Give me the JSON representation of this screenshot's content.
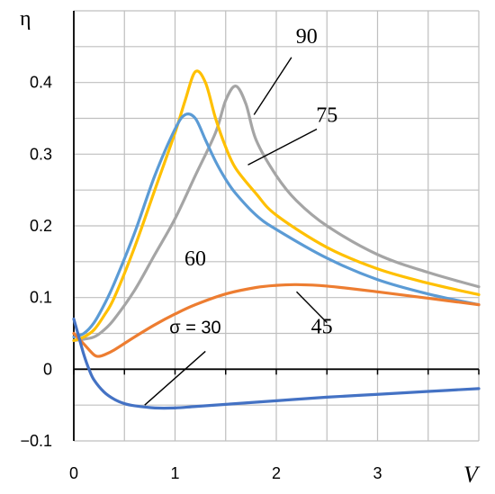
{
  "chart_data": {
    "type": "line",
    "xlabel": "V",
    "ylabel": "η",
    "xlim": [
      0,
      4
    ],
    "ylim": [
      -0.1,
      0.5
    ],
    "grid": true,
    "xticks": [
      "0",
      "1",
      "2",
      "3"
    ],
    "yticks": [
      "−0.1",
      "0",
      "0.1",
      "0.2",
      "0.3",
      "0.4"
    ],
    "series": [
      {
        "name": "90",
        "color": "#a5a5a5",
        "x": [
          0,
          0.1,
          0.2,
          0.3,
          0.4,
          0.6,
          0.8,
          1.0,
          1.2,
          1.4,
          1.5,
          1.6,
          1.7,
          1.8,
          2.0,
          2.2,
          2.5,
          3.0,
          3.5,
          4.0
        ],
        "y": [
          0.04,
          0.042,
          0.045,
          0.055,
          0.07,
          0.11,
          0.16,
          0.21,
          0.27,
          0.33,
          0.375,
          0.395,
          0.37,
          0.32,
          0.27,
          0.235,
          0.2,
          0.16,
          0.135,
          0.115
        ]
      },
      {
        "name": "75",
        "color": "#ffc000",
        "x": [
          0,
          0.1,
          0.2,
          0.3,
          0.4,
          0.6,
          0.8,
          1.0,
          1.1,
          1.2,
          1.3,
          1.4,
          1.5,
          1.6,
          1.8,
          2.0,
          2.5,
          3.0,
          3.5,
          4.0
        ],
        "y": [
          0.04,
          0.045,
          0.055,
          0.075,
          0.1,
          0.17,
          0.25,
          0.33,
          0.375,
          0.415,
          0.4,
          0.35,
          0.31,
          0.28,
          0.245,
          0.215,
          0.17,
          0.14,
          0.12,
          0.104
        ]
      },
      {
        "name": "60",
        "color": "#5b9bd5",
        "x": [
          0,
          0.1,
          0.2,
          0.3,
          0.4,
          0.6,
          0.8,
          1.0,
          1.1,
          1.2,
          1.3,
          1.4,
          1.5,
          1.6,
          1.8,
          2.0,
          2.5,
          3.0,
          3.5,
          4.0
        ],
        "y": [
          0.045,
          0.05,
          0.065,
          0.09,
          0.12,
          0.19,
          0.27,
          0.335,
          0.355,
          0.35,
          0.32,
          0.29,
          0.265,
          0.245,
          0.215,
          0.195,
          0.155,
          0.125,
          0.105,
          0.09
        ]
      },
      {
        "name": "45",
        "color": "#ed7d31",
        "x": [
          0,
          0.1,
          0.2,
          0.25,
          0.3,
          0.4,
          0.6,
          0.8,
          1.0,
          1.2,
          1.5,
          1.8,
          2.0,
          2.2,
          2.5,
          3.0,
          3.5,
          4.0
        ],
        "y": [
          0.05,
          0.035,
          0.02,
          0.018,
          0.02,
          0.027,
          0.045,
          0.062,
          0.077,
          0.09,
          0.105,
          0.114,
          0.117,
          0.118,
          0.116,
          0.108,
          0.099,
          0.09
        ]
      },
      {
        "name": "σ = 30",
        "color": "#4472c4",
        "x": [
          0,
          0.05,
          0.1,
          0.15,
          0.2,
          0.3,
          0.4,
          0.5,
          0.6,
          0.8,
          1.0,
          1.2,
          1.5,
          2.0,
          2.5,
          3.0,
          3.5,
          4.0
        ],
        "y": [
          0.07,
          0.045,
          0.02,
          0.0,
          -0.015,
          -0.032,
          -0.042,
          -0.048,
          -0.051,
          -0.054,
          -0.054,
          -0.052,
          -0.049,
          -0.044,
          -0.039,
          -0.035,
          -0.031,
          -0.027
        ]
      }
    ],
    "annotations": [
      {
        "text": "90",
        "x": 2.3,
        "y": 0.455,
        "leader": [
          [
            2.15,
            0.435
          ],
          [
            1.78,
            0.355
          ]
        ]
      },
      {
        "text": "75",
        "x": 2.5,
        "y": 0.345,
        "leader": [
          [
            2.4,
            0.335
          ],
          [
            1.72,
            0.285
          ]
        ]
      },
      {
        "text": "60",
        "x": 1.2,
        "y": 0.145,
        "leader": null
      },
      {
        "text": "45",
        "x": 2.45,
        "y": 0.05,
        "leader": [
          [
            2.5,
            0.065
          ],
          [
            2.2,
            0.108
          ]
        ]
      },
      {
        "text": "σ = 30",
        "x": 1.2,
        "y": 0.05,
        "leader": [
          [
            1.3,
            0.025
          ],
          [
            0.7,
            -0.05
          ]
        ]
      }
    ]
  }
}
